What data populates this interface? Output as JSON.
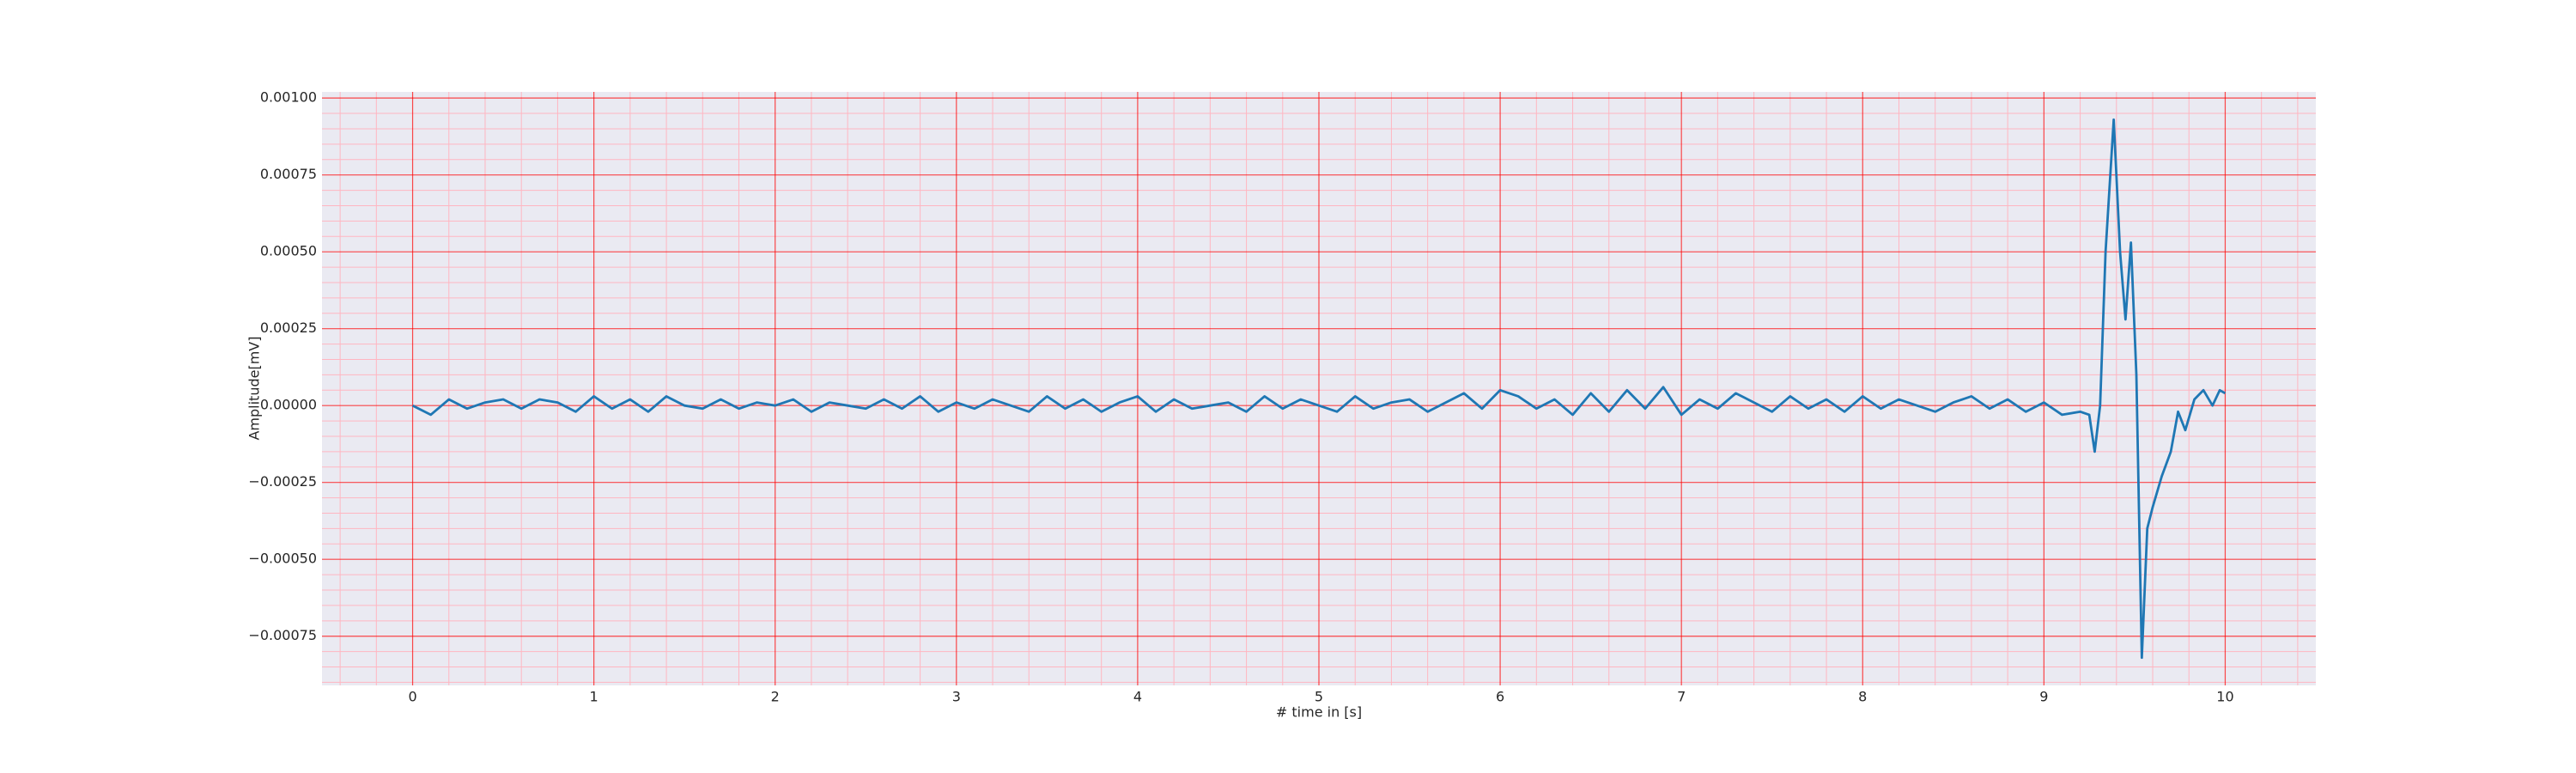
{
  "chart_data": {
    "type": "line",
    "xlabel": "# time in [s]",
    "ylabel": "Amplitude[mV]",
    "x": [
      0,
      0.1,
      0.2,
      0.3,
      0.4,
      0.5,
      0.6,
      0.7,
      0.8,
      0.9,
      1,
      1.1,
      1.2,
      1.3,
      1.4,
      1.5,
      1.6,
      1.7,
      1.8,
      1.9,
      2,
      2.1,
      2.2,
      2.3,
      2.4,
      2.5,
      2.6,
      2.7,
      2.8,
      2.9,
      3,
      3.1,
      3.2,
      3.3,
      3.4,
      3.5,
      3.6,
      3.7,
      3.8,
      3.9,
      4,
      4.1,
      4.2,
      4.3,
      4.4,
      4.5,
      4.6,
      4.7,
      4.8,
      4.9,
      5,
      5.1,
      5.2,
      5.3,
      5.4,
      5.5,
      5.6,
      5.7,
      5.8,
      5.9,
      6,
      6.1,
      6.2,
      6.3,
      6.4,
      6.5,
      6.6,
      6.7,
      6.8,
      6.9,
      7,
      7.1,
      7.2,
      7.3,
      7.4,
      7.5,
      7.6,
      7.7,
      7.8,
      7.9,
      8,
      8.1,
      8.2,
      8.3,
      8.4,
      8.5,
      8.6,
      8.7,
      8.8,
      8.9,
      9,
      9.1,
      9.2,
      9.25,
      9.28,
      9.31,
      9.34,
      9.385,
      9.42,
      9.45,
      9.48,
      9.51,
      9.54,
      9.57,
      9.6,
      9.65,
      9.7,
      9.74,
      9.78,
      9.83,
      9.88,
      9.93,
      9.97,
      10
    ],
    "values": [
      0,
      -3e-05,
      2e-05,
      -1e-05,
      1e-05,
      2e-05,
      -1e-05,
      2e-05,
      1e-05,
      -2e-05,
      3e-05,
      -1e-05,
      2e-05,
      -2e-05,
      3e-05,
      0,
      -1e-05,
      2e-05,
      -1e-05,
      1e-05,
      0,
      2e-05,
      -2e-05,
      1e-05,
      0,
      -1e-05,
      2e-05,
      -1e-05,
      3e-05,
      -2e-05,
      1e-05,
      -1e-05,
      2e-05,
      0,
      -2e-05,
      3e-05,
      -1e-05,
      2e-05,
      -2e-05,
      1e-05,
      3e-05,
      -2e-05,
      2e-05,
      -1e-05,
      0,
      1e-05,
      -2e-05,
      3e-05,
      -1e-05,
      2e-05,
      0,
      -2e-05,
      3e-05,
      -1e-05,
      1e-05,
      2e-05,
      -2e-05,
      1e-05,
      4e-05,
      -1e-05,
      5e-05,
      3e-05,
      -1e-05,
      2e-05,
      -3e-05,
      4e-05,
      -2e-05,
      5e-05,
      -1e-05,
      6e-05,
      -3e-05,
      2e-05,
      -1e-05,
      4e-05,
      1e-05,
      -2e-05,
      3e-05,
      -1e-05,
      2e-05,
      -2e-05,
      3e-05,
      -1e-05,
      2e-05,
      0,
      -2e-05,
      1e-05,
      3e-05,
      -1e-05,
      2e-05,
      -2e-05,
      1e-05,
      -3e-05,
      -2e-05,
      -3e-05,
      -0.00015,
      0,
      0.0005,
      0.00093,
      0.0005,
      0.00028,
      0.00053,
      0.0001,
      -0.00082,
      -0.0004,
      -0.00033,
      -0.00023,
      -0.00015,
      -2e-05,
      -8e-05,
      2e-05,
      5e-05,
      0,
      5e-05,
      4e-05
    ],
    "color": "#1f77b4",
    "xlim": [
      -0.5,
      10.5
    ],
    "xticks": [
      0,
      1,
      2,
      3,
      4,
      5,
      6,
      7,
      8,
      9,
      10
    ],
    "ylim": [
      -0.00091,
      0.00102
    ],
    "yticks": [
      {
        "value": -0.00075,
        "label": "−0.00075"
      },
      {
        "value": -0.0005,
        "label": "−0.00050"
      },
      {
        "value": -0.00025,
        "label": "−0.00025"
      },
      {
        "value": 0,
        "label": "0.00000"
      },
      {
        "value": 0.00025,
        "label": "0.00025"
      },
      {
        "value": 0.0005,
        "label": "0.00050"
      },
      {
        "value": 0.00075,
        "label": "0.00075"
      },
      {
        "value": 0.001,
        "label": "0.00100"
      }
    ],
    "grid": true,
    "minor_grid": true
  }
}
